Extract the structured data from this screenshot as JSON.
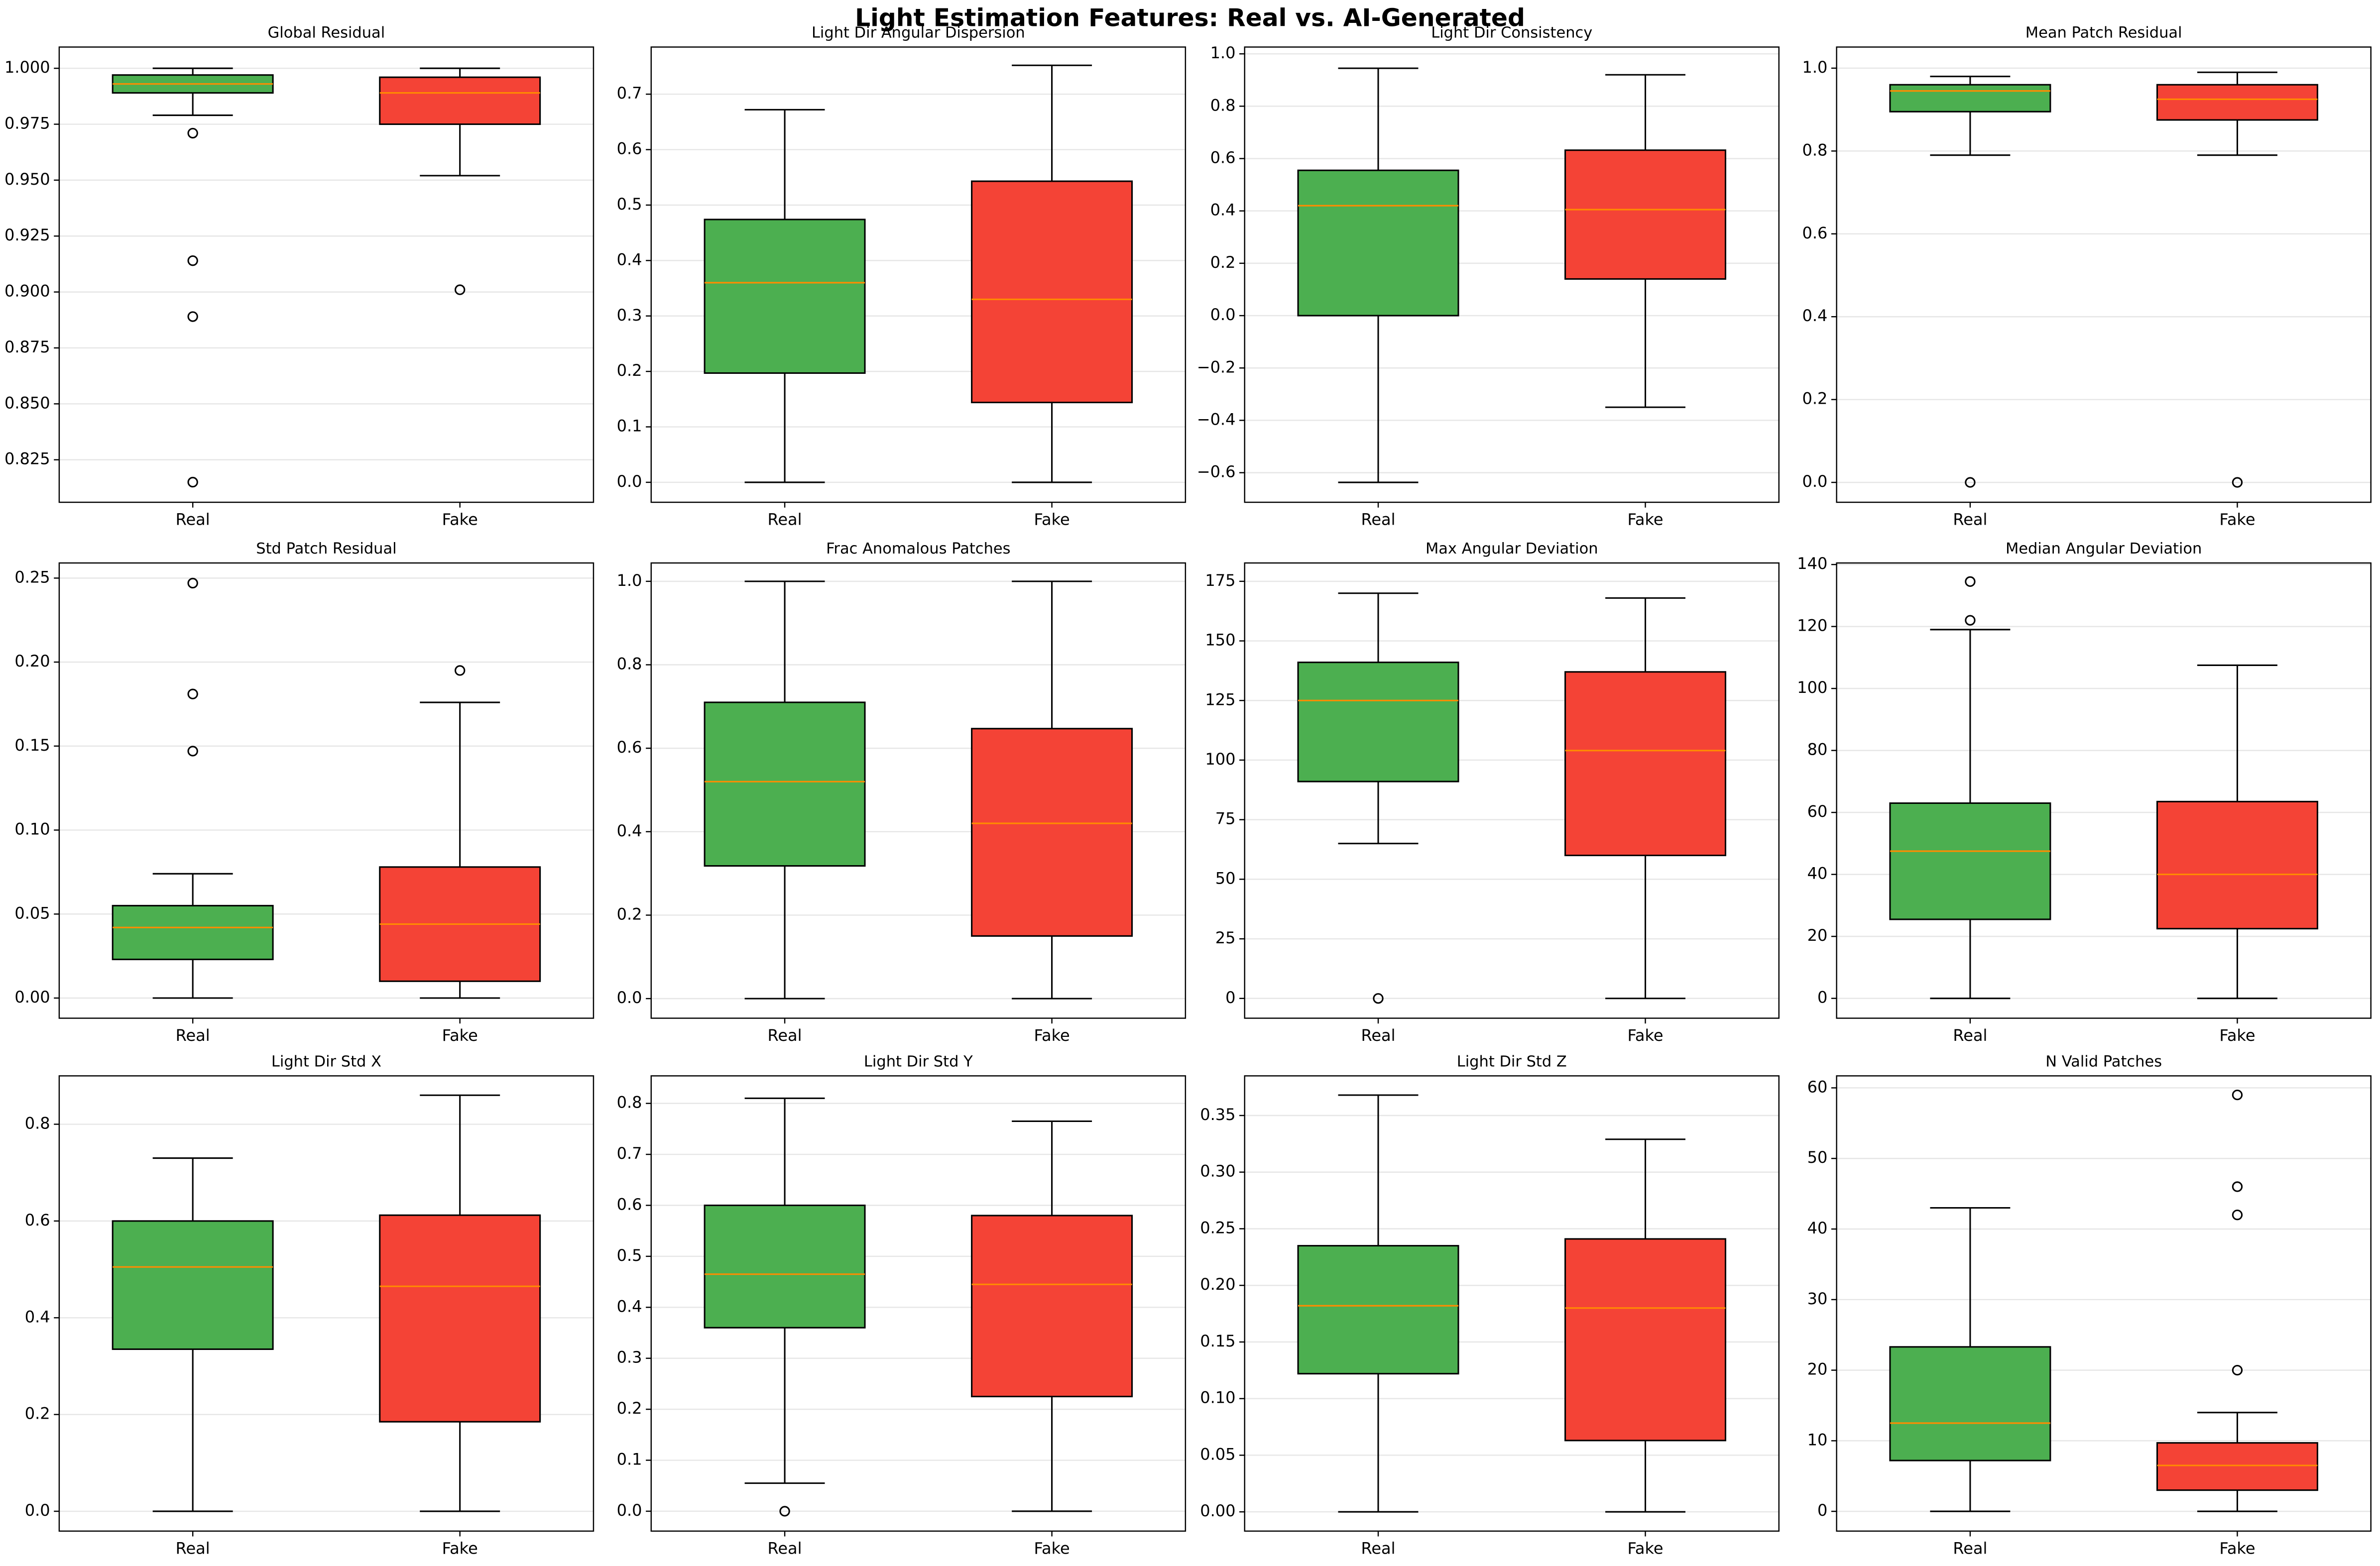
{
  "title": "Light Estimation Features: Real vs. AI-Generated",
  "chart_data": [
    {
      "type": "box",
      "title": "Global Residual",
      "categories": [
        "Real",
        "Fake"
      ],
      "colors": [
        "#4caf50",
        "#f44336"
      ],
      "median_color": "#ff8c00",
      "grid": true,
      "boxes": [
        {
          "whislo": 0.979,
          "q1": 0.989,
          "med": 0.993,
          "q3": 0.997,
          "whishi": 1.0,
          "fliers": [
            0.971,
            0.914,
            0.889,
            0.815
          ]
        },
        {
          "whislo": 0.952,
          "q1": 0.975,
          "med": 0.989,
          "q3": 0.996,
          "whishi": 1.0,
          "fliers": [
            0.901
          ]
        }
      ],
      "ylim": [
        0.806,
        1.0095
      ],
      "yticks": [
        {
          "value": 0.825,
          "label": "0.825"
        },
        {
          "value": 0.85,
          "label": "0.850"
        },
        {
          "value": 0.875,
          "label": "0.875"
        },
        {
          "value": 0.9,
          "label": "0.900"
        },
        {
          "value": 0.925,
          "label": "0.925"
        },
        {
          "value": 0.95,
          "label": "0.950"
        },
        {
          "value": 0.975,
          "label": "0.975"
        },
        {
          "value": 1.0,
          "label": "1.000"
        }
      ]
    },
    {
      "type": "box",
      "title": "Light Dir Angular Dispersion",
      "categories": [
        "Real",
        "Fake"
      ],
      "colors": [
        "#4caf50",
        "#f44336"
      ],
      "median_color": "#ff8c00",
      "grid": true,
      "boxes": [
        {
          "whislo": 0.0,
          "q1": 0.197,
          "med": 0.36,
          "q3": 0.474,
          "whishi": 0.672,
          "fliers": []
        },
        {
          "whislo": 0.0,
          "q1": 0.144,
          "med": 0.33,
          "q3": 0.543,
          "whishi": 0.752,
          "fliers": []
        }
      ],
      "ylim": [
        -0.036,
        0.785
      ],
      "yticks": [
        {
          "value": 0,
          "label": "0.0"
        },
        0.1,
        0.2,
        0.3,
        0.4,
        0.5,
        0.6,
        0.7
      ]
    },
    {
      "type": "box",
      "title": "Light Dir Consistency",
      "categories": [
        "Real",
        "Fake"
      ],
      "colors": [
        "#4caf50",
        "#f44336"
      ],
      "median_color": "#ff8c00",
      "grid": true,
      "boxes": [
        {
          "whislo": -0.637,
          "q1": 0.0,
          "med": 0.42,
          "q3": 0.555,
          "whishi": 0.945,
          "fliers": []
        },
        {
          "whislo": -0.35,
          "q1": 0.14,
          "med": 0.405,
          "q3": 0.632,
          "whishi": 0.92,
          "fliers": []
        }
      ],
      "ylim": [
        -0.713,
        1.026
      ],
      "yticks": [
        {
          "value": -0.6,
          "label": "−0.6"
        },
        {
          "value": -0.4,
          "label": "−0.4"
        },
        {
          "value": -0.2,
          "label": "−0.2"
        },
        {
          "value": 0,
          "label": "0.0"
        },
        0.2,
        0.4,
        0.6,
        0.8,
        {
          "value": 1,
          "label": "1.0"
        }
      ]
    },
    {
      "type": "box",
      "title": "Mean Patch Residual",
      "categories": [
        "Real",
        "Fake"
      ],
      "colors": [
        "#4caf50",
        "#f44336"
      ],
      "median_color": "#ff8c00",
      "grid": true,
      "boxes": [
        {
          "whislo": 0.79,
          "q1": 0.895,
          "med": 0.945,
          "q3": 0.96,
          "whishi": 0.98,
          "fliers": [
            0.0
          ]
        },
        {
          "whislo": 0.79,
          "q1": 0.875,
          "med": 0.925,
          "q3": 0.96,
          "whishi": 0.99,
          "fliers": [
            0.0
          ]
        }
      ],
      "ylim": [
        -0.048,
        1.051
      ],
      "yticks": [
        {
          "value": 0,
          "label": "0.0"
        },
        0.2,
        0.4,
        0.6,
        0.8,
        {
          "value": 1,
          "label": "1.0"
        }
      ]
    },
    {
      "type": "box",
      "title": "Std Patch Residual",
      "categories": [
        "Real",
        "Fake"
      ],
      "colors": [
        "#4caf50",
        "#f44336"
      ],
      "median_color": "#ff8c00",
      "grid": true,
      "boxes": [
        {
          "whislo": 0.0,
          "q1": 0.023,
          "med": 0.042,
          "q3": 0.055,
          "whishi": 0.074,
          "fliers": [
            0.247,
            0.181,
            0.147
          ]
        },
        {
          "whislo": 0.0,
          "q1": 0.01,
          "med": 0.044,
          "q3": 0.078,
          "whishi": 0.176,
          "fliers": [
            0.195
          ]
        }
      ],
      "ylim": [
        -0.012,
        0.259
      ],
      "yticks": [
        {
          "value": 0,
          "label": "0.00"
        },
        0.05,
        {
          "value": 0.1,
          "label": "0.10"
        },
        0.15,
        {
          "value": 0.2,
          "label": "0.20"
        },
        0.25
      ]
    },
    {
      "type": "box",
      "title": "Frac Anomalous Patches",
      "categories": [
        "Real",
        "Fake"
      ],
      "colors": [
        "#4caf50",
        "#f44336"
      ],
      "median_color": "#ff8c00",
      "grid": true,
      "boxes": [
        {
          "whislo": 0.0,
          "q1": 0.318,
          "med": 0.52,
          "q3": 0.71,
          "whishi": 1.0,
          "fliers": []
        },
        {
          "whislo": 0.0,
          "q1": 0.15,
          "med": 0.42,
          "q3": 0.647,
          "whishi": 1.0,
          "fliers": []
        }
      ],
      "ylim": [
        -0.047,
        1.044
      ],
      "yticks": [
        {
          "value": 0,
          "label": "0.0"
        },
        0.2,
        0.4,
        0.6,
        0.8,
        {
          "value": 1,
          "label": "1.0"
        }
      ]
    },
    {
      "type": "box",
      "title": "Max Angular Deviation",
      "categories": [
        "Real",
        "Fake"
      ],
      "colors": [
        "#4caf50",
        "#f44336"
      ],
      "median_color": "#ff8c00",
      "grid": true,
      "boxes": [
        {
          "whislo": 65,
          "q1": 91,
          "med": 125,
          "q3": 141,
          "whishi": 170,
          "fliers": [
            0
          ]
        },
        {
          "whislo": 0,
          "q1": 60,
          "med": 104,
          "q3": 137,
          "whishi": 168,
          "fliers": []
        }
      ],
      "ylim": [
        -8.3,
        182.7
      ],
      "yticks": [
        0,
        25,
        50,
        75,
        100,
        125,
        150,
        175
      ]
    },
    {
      "type": "box",
      "title": "Median Angular Deviation",
      "categories": [
        "Real",
        "Fake"
      ],
      "colors": [
        "#4caf50",
        "#f44336"
      ],
      "median_color": "#ff8c00",
      "grid": true,
      "boxes": [
        {
          "whislo": 0,
          "q1": 25.5,
          "med": 47.5,
          "q3": 63,
          "whishi": 119,
          "fliers": [
            122,
            134.5
          ]
        },
        {
          "whislo": 0,
          "q1": 22.5,
          "med": 40,
          "q3": 63.5,
          "whishi": 107.5,
          "fliers": []
        }
      ],
      "ylim": [
        -6.4,
        140.5
      ],
      "yticks": [
        0,
        20,
        40,
        60,
        80,
        100,
        120,
        140
      ]
    },
    {
      "type": "box",
      "title": "Light Dir Std X",
      "categories": [
        "Real",
        "Fake"
      ],
      "colors": [
        "#4caf50",
        "#f44336"
      ],
      "median_color": "#ff8c00",
      "grid": true,
      "boxes": [
        {
          "whislo": 0.0,
          "q1": 0.335,
          "med": 0.505,
          "q3": 0.6,
          "whishi": 0.73,
          "fliers": []
        },
        {
          "whislo": 0.0,
          "q1": 0.185,
          "med": 0.465,
          "q3": 0.612,
          "whishi": 0.86,
          "fliers": []
        }
      ],
      "ylim": [
        -0.041,
        0.9
      ],
      "yticks": [
        {
          "value": 0,
          "label": "0.0"
        },
        0.2,
        0.4,
        0.6,
        0.8
      ]
    },
    {
      "type": "box",
      "title": "Light Dir Std Y",
      "categories": [
        "Real",
        "Fake"
      ],
      "colors": [
        "#4caf50",
        "#f44336"
      ],
      "median_color": "#ff8c00",
      "grid": true,
      "boxes": [
        {
          "whislo": 0.055,
          "q1": 0.36,
          "med": 0.465,
          "q3": 0.6,
          "whishi": 0.81,
          "fliers": [
            0.0
          ]
        },
        {
          "whislo": 0.0,
          "q1": 0.225,
          "med": 0.445,
          "q3": 0.58,
          "whishi": 0.765,
          "fliers": []
        }
      ],
      "ylim": [
        -0.039,
        0.854
      ],
      "yticks": [
        {
          "value": 0,
          "label": "0.0"
        },
        0.1,
        0.2,
        0.3,
        0.4,
        0.5,
        0.6,
        0.7,
        0.8
      ]
    },
    {
      "type": "box",
      "title": "Light Dir Std Z",
      "categories": [
        "Real",
        "Fake"
      ],
      "colors": [
        "#4caf50",
        "#f44336"
      ],
      "median_color": "#ff8c00",
      "grid": true,
      "boxes": [
        {
          "whislo": 0.0,
          "q1": 0.122,
          "med": 0.182,
          "q3": 0.235,
          "whishi": 0.368,
          "fliers": []
        },
        {
          "whislo": 0.0,
          "q1": 0.063,
          "med": 0.18,
          "q3": 0.241,
          "whishi": 0.329,
          "fliers": []
        }
      ],
      "ylim": [
        -0.017,
        0.385
      ],
      "yticks": [
        {
          "value": 0,
          "label": "0.00"
        },
        0.05,
        {
          "value": 0.1,
          "label": "0.10"
        },
        0.15,
        {
          "value": 0.2,
          "label": "0.20"
        },
        0.25,
        {
          "value": 0.3,
          "label": "0.30"
        },
        0.35
      ]
    },
    {
      "type": "box",
      "title": "N Valid Patches",
      "categories": [
        "Real",
        "Fake"
      ],
      "colors": [
        "#4caf50",
        "#f44336"
      ],
      "median_color": "#ff8c00",
      "grid": true,
      "boxes": [
        {
          "whislo": 0,
          "q1": 7.2,
          "med": 12.5,
          "q3": 23.3,
          "whishi": 43,
          "fliers": []
        },
        {
          "whislo": 0,
          "q1": 3,
          "med": 6.5,
          "q3": 9.7,
          "whishi": 14,
          "fliers": [
            20,
            42,
            46,
            59
          ]
        }
      ],
      "ylim": [
        -2.8,
        61.7
      ],
      "yticks": [
        0,
        10,
        20,
        30,
        40,
        50,
        60
      ]
    }
  ]
}
